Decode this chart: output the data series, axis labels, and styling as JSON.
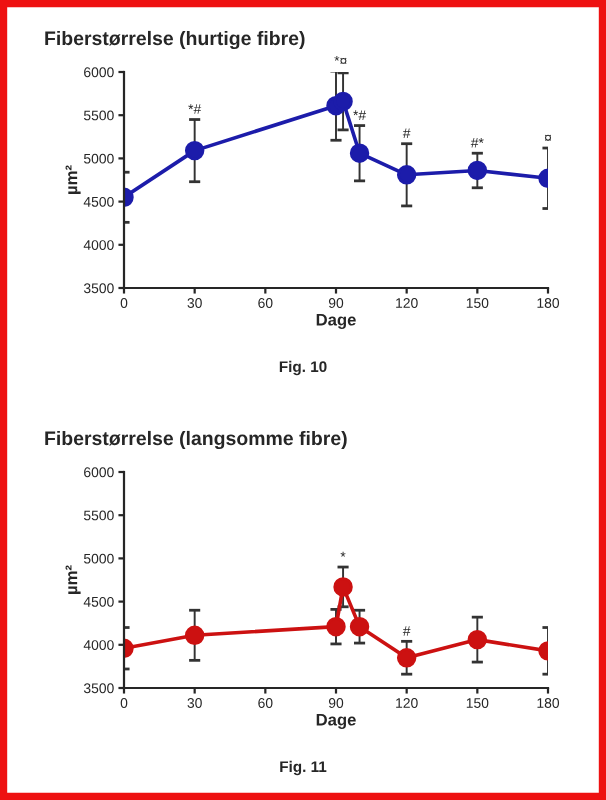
{
  "chart_data": [
    {
      "type": "line",
      "title": "Fiberstørrelse (hurtige fibre)",
      "xlabel": "Dage",
      "ylabel": "µm²",
      "marker": "circle",
      "line_style": "solid",
      "grid": false,
      "legend": false,
      "series": [
        {
          "color": "#1c1caa",
          "x": [
            0,
            30,
            90,
            93,
            100,
            120,
            150,
            180
          ],
          "values": [
            4550,
            5090,
            5610,
            5660,
            5060,
            4810,
            4860,
            4770
          ],
          "errors": [
            290,
            360,
            400,
            330,
            320,
            360,
            200,
            350
          ]
        }
      ],
      "xlim": [
        0,
        180
      ],
      "xticks": [
        0,
        30,
        60,
        90,
        120,
        150,
        180
      ],
      "ylim": [
        3500,
        6000
      ],
      "yticks": [
        3500,
        4000,
        4500,
        5000,
        5500,
        6000
      ],
      "annotations": [
        {
          "text": "*#",
          "x": 30,
          "y": 5450
        },
        {
          "text": "*¤",
          "x": 92,
          "y": 6010
        },
        {
          "text": "*#",
          "x": 100,
          "y": 5380
        },
        {
          "text": "#",
          "x": 120,
          "y": 5170
        },
        {
          "text": "#*",
          "x": 150,
          "y": 5060
        },
        {
          "text": "¤",
          "x": 180,
          "y": 5120
        },
        "Fig. 10"
      ]
    },
    {
      "type": "line",
      "title": "Fiberstørrelse (langsomme fibre)",
      "xlabel": "Dage",
      "ylabel": "µm²",
      "marker": "circle",
      "line_style": "solid",
      "grid": false,
      "legend": false,
      "series": [
        {
          "color": "#cc1111",
          "x": [
            0,
            30,
            90,
            93,
            100,
            120,
            150,
            180
          ],
          "values": [
            3960,
            4110,
            4210,
            4670,
            4210,
            3850,
            4060,
            3930
          ],
          "errors": [
            240,
            290,
            200,
            230,
            190,
            190,
            260,
            270
          ]
        }
      ],
      "xlim": [
        0,
        180
      ],
      "xticks": [
        0,
        30,
        60,
        90,
        120,
        150,
        180
      ],
      "ylim": [
        3500,
        6000
      ],
      "yticks": [
        3500,
        4000,
        4500,
        5000,
        5500,
        6000
      ],
      "annotations": [
        {
          "text": "*",
          "x": 93,
          "y": 4900
        },
        {
          "text": "#",
          "x": 120,
          "y": 4040
        },
        "Fig. 11"
      ]
    }
  ]
}
